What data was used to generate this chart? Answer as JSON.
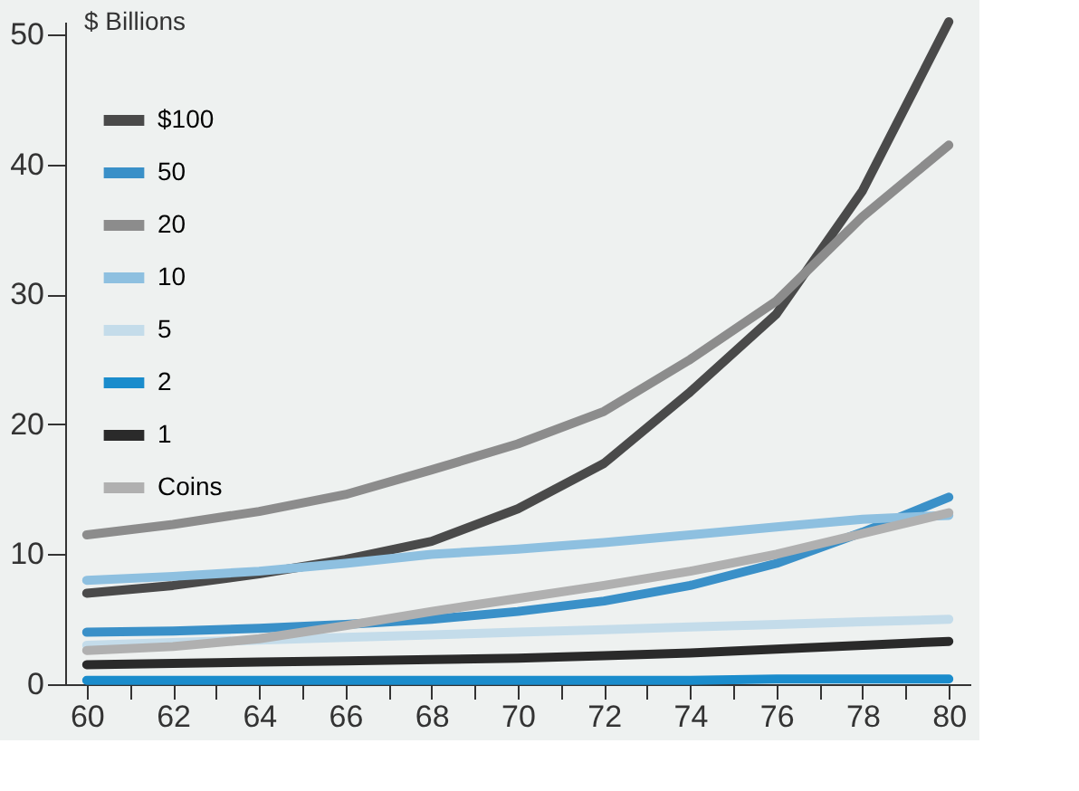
{
  "chart_data": {
    "type": "line",
    "ylabel": "$ Billions",
    "x": [
      60,
      62,
      64,
      66,
      68,
      70,
      72,
      74,
      76,
      78,
      80
    ],
    "xlim": [
      59.5,
      80.5
    ],
    "ylim": [
      0,
      51
    ],
    "xticks": [
      60,
      {
        "value": 61,
        "label": null
      },
      62,
      {
        "value": 63,
        "label": null
      },
      64,
      {
        "value": 65,
        "label": null
      },
      66,
      {
        "value": 67,
        "label": null
      },
      68,
      {
        "value": 69,
        "label": null
      },
      70,
      {
        "value": 71,
        "label": null
      },
      72,
      {
        "value": 73,
        "label": null
      },
      74,
      {
        "value": 75,
        "label": null
      },
      76,
      {
        "value": 77,
        "label": null
      },
      78,
      {
        "value": 79,
        "label": null
      },
      80
    ],
    "yticks": [
      0,
      10,
      20,
      30,
      40,
      50
    ],
    "grid": false,
    "legend": "top left",
    "marker": "none",
    "line_style": "solid",
    "series": [
      {
        "name": "$100",
        "color": "#4a4a4a",
        "values": [
          7,
          7.6,
          8.5,
          9.6,
          11,
          13.5,
          17,
          22.5,
          28.5,
          38,
          51
        ]
      },
      {
        "name": "50",
        "color": "#3a90c8",
        "values": [
          4,
          4.1,
          4.3,
          4.6,
          5,
          5.6,
          6.4,
          7.6,
          9.3,
          11.7,
          14.4
        ]
      },
      {
        "name": "20",
        "color": "#8c8c8c",
        "values": [
          11.5,
          12.3,
          13.3,
          14.6,
          16.5,
          18.5,
          21,
          25,
          29.5,
          36,
          41.5
        ]
      },
      {
        "name": "10",
        "color": "#8ec0e0",
        "values": [
          8,
          8.3,
          8.7,
          9.3,
          10,
          10.4,
          10.9,
          11.5,
          12.1,
          12.7,
          13
        ]
      },
      {
        "name": "5",
        "color": "#c4dcea",
        "values": [
          3,
          3.2,
          3.4,
          3.6,
          3.8,
          4,
          4.2,
          4.4,
          4.6,
          4.8,
          5
        ]
      },
      {
        "name": "2",
        "color": "#1a8ccc",
        "values": [
          0.3,
          0.3,
          0.3,
          0.3,
          0.3,
          0.3,
          0.3,
          0.3,
          0.4,
          0.4,
          0.4
        ]
      },
      {
        "name": "1",
        "color": "#2a2a2a",
        "values": [
          1.5,
          1.6,
          1.7,
          1.8,
          1.9,
          2,
          2.2,
          2.4,
          2.7,
          3,
          3.3
        ]
      },
      {
        "name": "Coins",
        "color": "#b0b0b0",
        "values": [
          2.6,
          2.9,
          3.5,
          4.5,
          5.6,
          6.6,
          7.6,
          8.7,
          10,
          11.6,
          13.2
        ]
      }
    ]
  }
}
